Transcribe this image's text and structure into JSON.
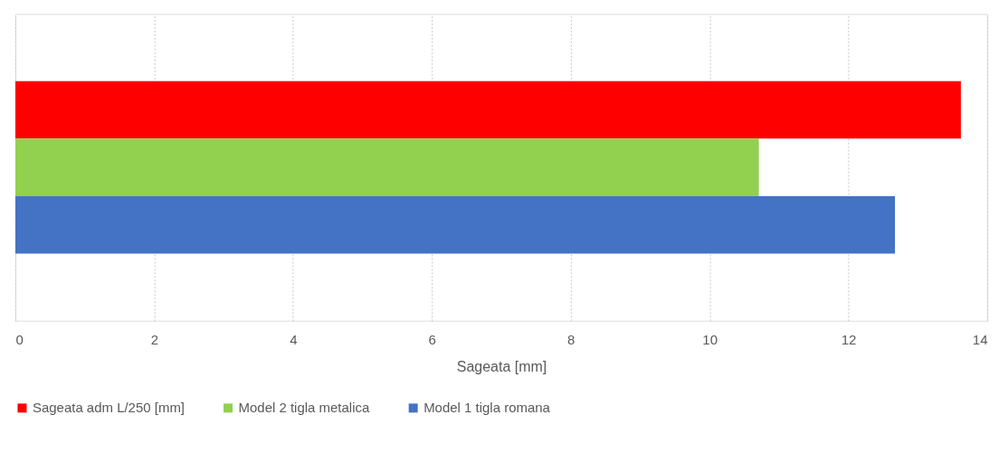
{
  "chart_data": {
    "type": "bar",
    "orientation": "horizontal",
    "categories": [
      null
    ],
    "series": [
      {
        "name": "Sageata adm L/250 [mm]",
        "color": "#ff0000",
        "values": [
          13.62
        ]
      },
      {
        "name": "Model 2 tigla metalica",
        "color": "#92d050",
        "values": [
          10.71
        ]
      },
      {
        "name": "Model 1 tigla romana",
        "color": "#4472c4",
        "values": [
          12.67
        ]
      }
    ],
    "xlabel": "Sageata [mm]",
    "xlim": [
      0,
      14
    ],
    "xticks": [
      0,
      2,
      4,
      6,
      8,
      10,
      12,
      14
    ],
    "grid": "x",
    "legend": "bottom"
  }
}
